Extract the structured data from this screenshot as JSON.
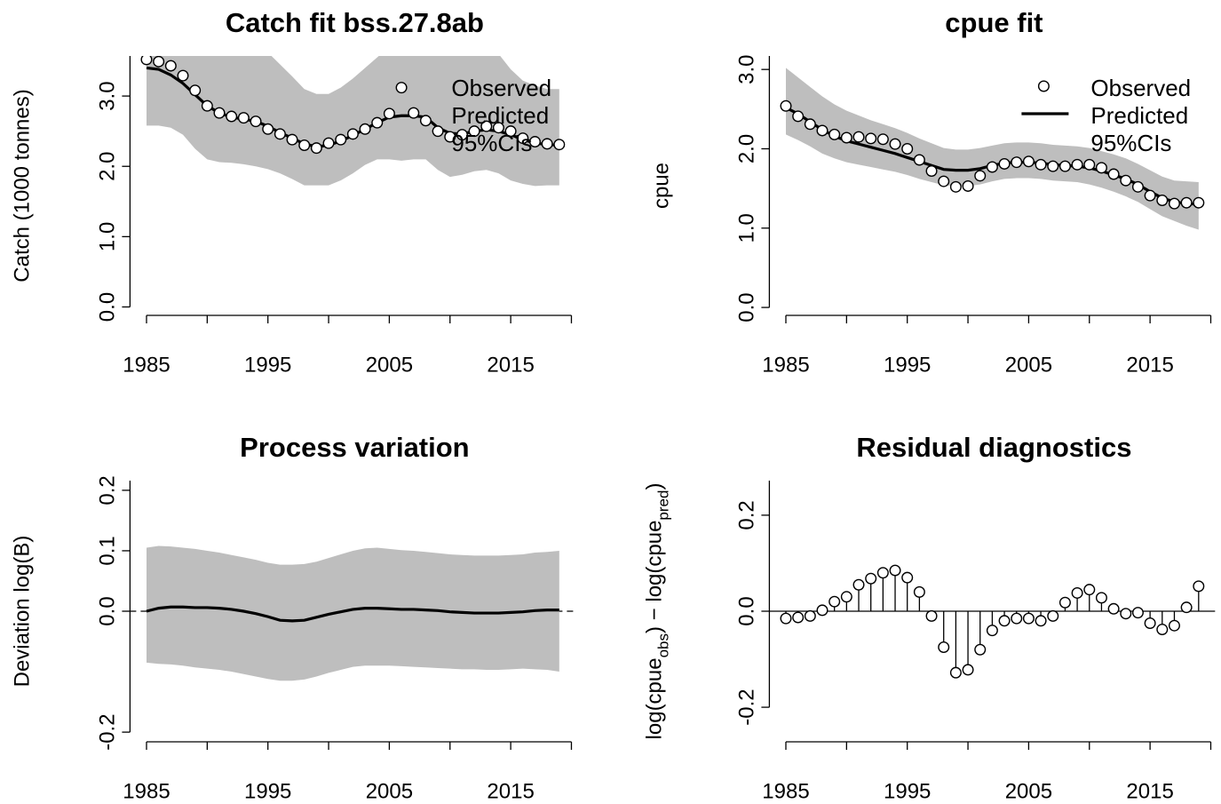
{
  "chart_data": [
    {
      "type": "line",
      "title": "Catch fit bss.27.8ab",
      "ylabel": "Catch (1000 tonnes)",
      "x": [
        1985,
        1986,
        1987,
        1988,
        1989,
        1990,
        1991,
        1992,
        1993,
        1994,
        1995,
        1996,
        1997,
        1998,
        1999,
        2000,
        2001,
        2002,
        2003,
        2004,
        2005,
        2006,
        2007,
        2008,
        2009,
        2010,
        2011,
        2012,
        2013,
        2014,
        2015,
        2016,
        2017,
        2018,
        2019
      ],
      "xlim": [
        1983.64,
        2020.36
      ],
      "xticks": [
        1985,
        1995,
        2005,
        2015
      ],
      "xminorticks": [
        1990,
        2000,
        2010,
        2020
      ],
      "ylim": [
        -0.12,
        3.57
      ],
      "yticks": [
        {
          "value": 0,
          "label": "0.0"
        },
        {
          "value": 1,
          "label": "1.0"
        },
        {
          "value": 2,
          "label": "2.0"
        },
        {
          "value": 3,
          "label": "3.0"
        }
      ],
      "legend": "topright",
      "legend_symbols": false,
      "series": [
        {
          "name": "Observed",
          "color": "#000000",
          "style": "points",
          "values": [
            3.52,
            3.49,
            3.43,
            3.29,
            3.08,
            2.86,
            2.76,
            2.71,
            2.69,
            2.64,
            2.53,
            2.46,
            2.38,
            2.3,
            2.26,
            2.33,
            2.38,
            2.46,
            2.53,
            2.62,
            2.75,
            3.12,
            2.76,
            2.65,
            2.5,
            2.42,
            2.45,
            2.5,
            2.57,
            2.55,
            2.5,
            2.4,
            2.35,
            2.32,
            2.31
          ]
        },
        {
          "name": "Predicted",
          "color": "#000000",
          "style": "line",
          "values": [
            3.4,
            3.38,
            3.3,
            3.18,
            3.02,
            2.86,
            2.76,
            2.7,
            2.67,
            2.64,
            2.57,
            2.48,
            2.4,
            2.32,
            2.28,
            2.3,
            2.36,
            2.44,
            2.53,
            2.62,
            2.7,
            2.72,
            2.72,
            2.7,
            2.55,
            2.47,
            2.46,
            2.5,
            2.52,
            2.5,
            2.45,
            2.38,
            2.33,
            2.31,
            2.3
          ]
        },
        {
          "name": "95%CIs",
          "color": "#bebebe",
          "style": "band",
          "upper": [
            3.7,
            3.7,
            3.7,
            3.7,
            3.7,
            3.7,
            3.7,
            3.7,
            3.7,
            3.7,
            3.62,
            3.45,
            3.28,
            3.1,
            3.03,
            3.03,
            3.12,
            3.25,
            3.4,
            3.55,
            3.7,
            3.7,
            3.7,
            3.7,
            3.7,
            3.7,
            3.7,
            3.7,
            3.7,
            3.6,
            3.38,
            3.22,
            3.15,
            3.1,
            3.1
          ],
          "lower": [
            2.58,
            2.58,
            2.55,
            2.45,
            2.25,
            2.1,
            2.06,
            2.05,
            2.03,
            2.0,
            1.96,
            1.9,
            1.82,
            1.73,
            1.73,
            1.73,
            1.8,
            1.9,
            2.02,
            2.1,
            2.1,
            2.08,
            2.1,
            2.1,
            1.95,
            1.85,
            1.88,
            1.93,
            1.95,
            1.9,
            1.8,
            1.75,
            1.72,
            1.73,
            1.73
          ]
        }
      ]
    },
    {
      "type": "line",
      "title": "cpue fit",
      "ylabel": "cpue",
      "x": [
        1985,
        1986,
        1987,
        1988,
        1989,
        1990,
        1991,
        1992,
        1993,
        1994,
        1995,
        1996,
        1997,
        1998,
        1999,
        2000,
        2001,
        2002,
        2003,
        2004,
        2005,
        2006,
        2007,
        2008,
        2009,
        2010,
        2011,
        2012,
        2013,
        2014,
        2015,
        2016,
        2017,
        2018,
        2019
      ],
      "xlim": [
        1983.64,
        2020.36
      ],
      "xticks": [
        1985,
        1995,
        2005,
        2015
      ],
      "xminorticks": [
        1990,
        2000,
        2010,
        2020
      ],
      "ylim": [
        -0.1,
        3.17
      ],
      "yticks": [
        {
          "value": 0,
          "label": "0.0"
        },
        {
          "value": 1,
          "label": "1.0"
        },
        {
          "value": 2,
          "label": "2.0"
        },
        {
          "value": 3,
          "label": "3.0"
        }
      ],
      "legend": "topright",
      "legend_symbols": true,
      "series": [
        {
          "name": "Observed",
          "color": "#000000",
          "style": "points",
          "values": [
            2.54,
            2.41,
            2.31,
            2.23,
            2.18,
            2.14,
            2.15,
            2.13,
            2.12,
            2.06,
            2.0,
            1.86,
            1.72,
            1.59,
            1.52,
            1.53,
            1.66,
            1.77,
            1.81,
            1.83,
            1.84,
            1.8,
            1.78,
            1.78,
            1.8,
            1.8,
            1.76,
            1.68,
            1.6,
            1.52,
            1.41,
            1.35,
            1.31,
            1.32,
            1.32
          ]
        },
        {
          "name": "Predicted",
          "color": "#000000",
          "style": "line",
          "values": [
            2.52,
            2.44,
            2.34,
            2.24,
            2.16,
            2.1,
            2.06,
            2.02,
            1.98,
            1.94,
            1.89,
            1.84,
            1.79,
            1.74,
            1.73,
            1.73,
            1.75,
            1.79,
            1.82,
            1.83,
            1.83,
            1.82,
            1.8,
            1.79,
            1.78,
            1.76,
            1.72,
            1.67,
            1.62,
            1.55,
            1.46,
            1.38,
            1.33,
            1.31,
            1.3
          ]
        },
        {
          "name": "95%CIs",
          "color": "#bebebe",
          "style": "band",
          "upper": [
            3.02,
            2.9,
            2.78,
            2.66,
            2.56,
            2.48,
            2.42,
            2.36,
            2.31,
            2.26,
            2.2,
            2.13,
            2.07,
            2.01,
            1.99,
            1.99,
            2.01,
            2.04,
            2.07,
            2.08,
            2.08,
            2.07,
            2.05,
            2.04,
            2.03,
            2.01,
            1.97,
            1.93,
            1.88,
            1.81,
            1.73,
            1.65,
            1.6,
            1.59,
            1.58
          ],
          "lower": [
            2.18,
            2.11,
            2.03,
            1.94,
            1.88,
            1.83,
            1.8,
            1.77,
            1.74,
            1.71,
            1.67,
            1.62,
            1.58,
            1.54,
            1.53,
            1.53,
            1.55,
            1.59,
            1.62,
            1.63,
            1.63,
            1.62,
            1.6,
            1.59,
            1.58,
            1.55,
            1.51,
            1.46,
            1.4,
            1.33,
            1.24,
            1.15,
            1.09,
            1.03,
            0.98
          ]
        }
      ]
    },
    {
      "type": "line",
      "title": "Process variation",
      "ylabel": "Deviation log(B)",
      "x": [
        1985,
        1986,
        1987,
        1988,
        1989,
        1990,
        1991,
        1992,
        1993,
        1994,
        1995,
        1996,
        1997,
        1998,
        1999,
        2000,
        2001,
        2002,
        2003,
        2004,
        2005,
        2006,
        2007,
        2008,
        2009,
        2010,
        2011,
        2012,
        2013,
        2014,
        2015,
        2016,
        2017,
        2018,
        2019
      ],
      "xlim": [
        1983.64,
        2020.36
      ],
      "xticks": [
        1985,
        1995,
        2005,
        2015
      ],
      "xminorticks": [
        1990,
        2000,
        2010,
        2020
      ],
      "ylim": [
        -0.216,
        0.216
      ],
      "yticks": [
        -0.2,
        {
          "value": 0,
          "label": "0.0"
        },
        0.1,
        0.2
      ],
      "zero_line": "dashed",
      "series": [
        {
          "color": "#bebebe",
          "style": "band",
          "upper": [
            0.105,
            0.108,
            0.107,
            0.105,
            0.103,
            0.1,
            0.097,
            0.093,
            0.089,
            0.085,
            0.08,
            0.077,
            0.077,
            0.078,
            0.082,
            0.088,
            0.094,
            0.1,
            0.104,
            0.105,
            0.103,
            0.101,
            0.1,
            0.098,
            0.096,
            0.094,
            0.093,
            0.092,
            0.092,
            0.092,
            0.093,
            0.094,
            0.097,
            0.098,
            0.1
          ],
          "lower": [
            -0.085,
            -0.087,
            -0.088,
            -0.09,
            -0.093,
            -0.095,
            -0.097,
            -0.1,
            -0.104,
            -0.108,
            -0.112,
            -0.115,
            -0.115,
            -0.113,
            -0.108,
            -0.102,
            -0.097,
            -0.092,
            -0.09,
            -0.09,
            -0.09,
            -0.091,
            -0.092,
            -0.093,
            -0.094,
            -0.095,
            -0.096,
            -0.096,
            -0.097,
            -0.097,
            -0.096,
            -0.095,
            -0.096,
            -0.097,
            -0.1
          ]
        },
        {
          "color": "#000000",
          "style": "line",
          "values": [
            0,
            0.005,
            0.007,
            0.007,
            0.006,
            0.006,
            0.005,
            0.003,
            0,
            -0.004,
            -0.009,
            -0.015,
            -0.016,
            -0.015,
            -0.01,
            -0.005,
            -0.001,
            0.003,
            0.005,
            0.005,
            0.004,
            0.003,
            0.003,
            0.002,
            0.001,
            -0.001,
            -0.002,
            -0.003,
            -0.003,
            -0.003,
            -0.002,
            -0.001,
            0.001,
            0.002,
            0.002
          ]
        }
      ]
    },
    {
      "type": "stem",
      "title": "Residual diagnostics",
      "ylabel": [
        "log(cpue",
        "obs",
        ") − log(cpue",
        "pred",
        ")"
      ],
      "x": [
        1985,
        1986,
        1987,
        1988,
        1989,
        1990,
        1991,
        1992,
        1993,
        1994,
        1995,
        1996,
        1997,
        1998,
        1999,
        2000,
        2001,
        2002,
        2003,
        2004,
        2005,
        2006,
        2007,
        2008,
        2009,
        2010,
        2011,
        2012,
        2013,
        2014,
        2015,
        2016,
        2017,
        2018,
        2019
      ],
      "xlim": [
        1983.64,
        2020.36
      ],
      "xticks": [
        1985,
        1995,
        2005,
        2015
      ],
      "xminorticks": [
        1990,
        2000,
        2010,
        2020
      ],
      "ylim": [
        -0.272,
        0.272
      ],
      "yticks": [
        -0.2,
        {
          "value": 0,
          "label": "0.0"
        },
        0.2
      ],
      "zero_line": "solid",
      "values": [
        -0.015,
        -0.013,
        -0.01,
        0.002,
        0.02,
        0.03,
        0.055,
        0.068,
        0.08,
        0.085,
        0.07,
        0.04,
        -0.01,
        -0.075,
        -0.128,
        -0.122,
        -0.08,
        -0.04,
        -0.02,
        -0.015,
        -0.015,
        -0.02,
        -0.01,
        0.018,
        0.038,
        0.045,
        0.028,
        0.005,
        -0.005,
        -0.003,
        -0.025,
        -0.038,
        -0.03,
        0.008,
        0.052
      ],
      "color": "#000000"
    }
  ]
}
